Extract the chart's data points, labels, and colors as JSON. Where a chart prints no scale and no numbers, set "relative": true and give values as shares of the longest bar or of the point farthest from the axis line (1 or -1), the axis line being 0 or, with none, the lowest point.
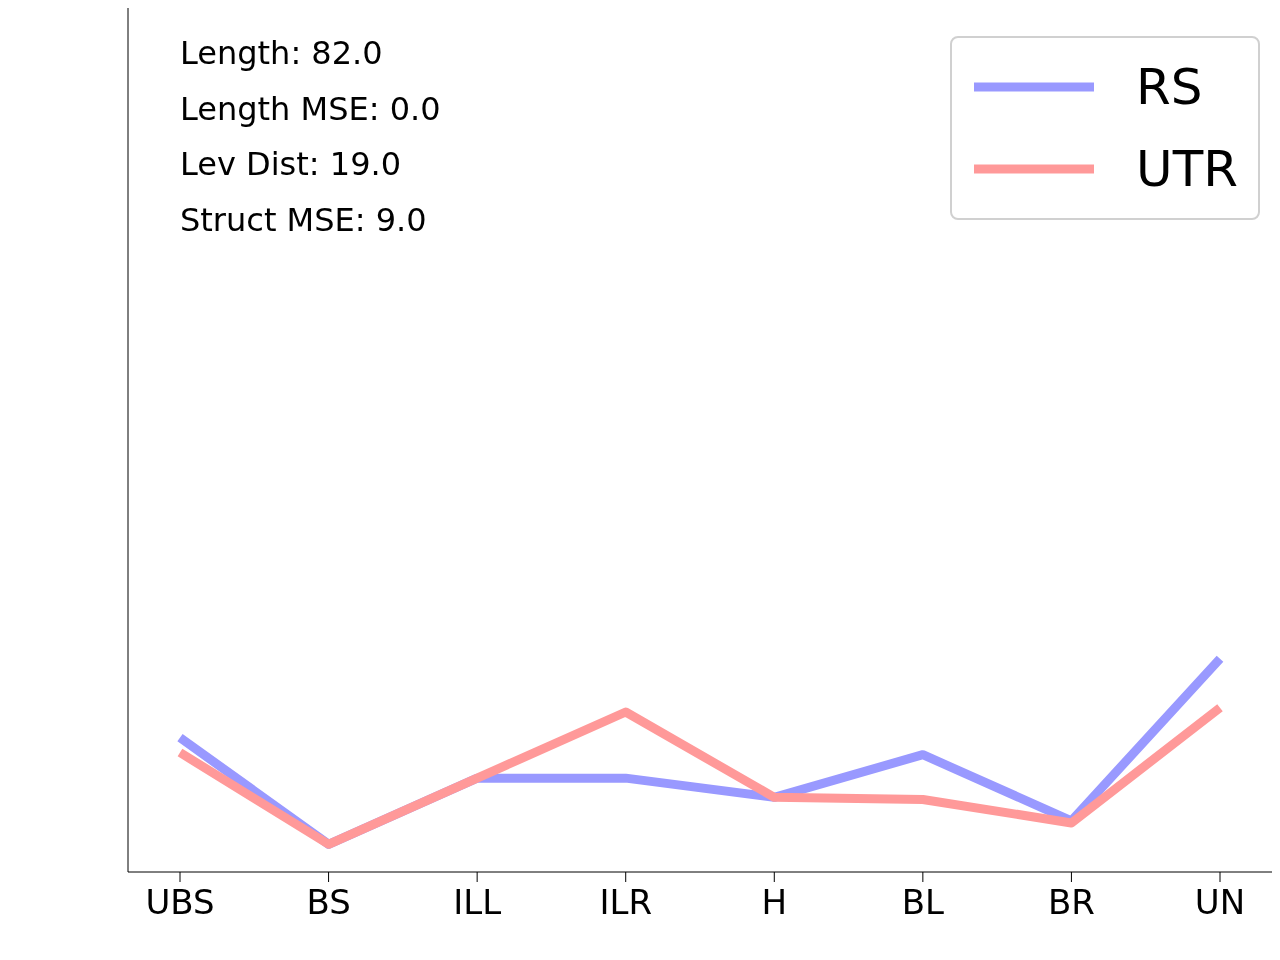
{
  "chart_data": {
    "type": "line",
    "relative": true,
    "categories": [
      "UBS",
      "BS",
      "ILL",
      "ILR",
      "H",
      "BL",
      "BR",
      "UN"
    ],
    "series": [
      {
        "name": "RS",
        "color": "#9999ff",
        "values": [
          0.63,
          0.13,
          0.44,
          0.44,
          0.35,
          0.55,
          0.24,
          1
        ]
      },
      {
        "name": "UTR",
        "color": "#ff9999",
        "values": [
          0.56,
          0.13,
          0.44,
          0.75,
          0.35,
          0.34,
          0.23,
          0.77
        ]
      }
    ],
    "annotations": [
      "Length: 82.0",
      "Length MSE: 0.0",
      "Lev Dist: 19.0",
      "Struct MSE: 9.0"
    ],
    "legend": "top right",
    "marker": "none",
    "line_style": "solid",
    "grid": false
  }
}
